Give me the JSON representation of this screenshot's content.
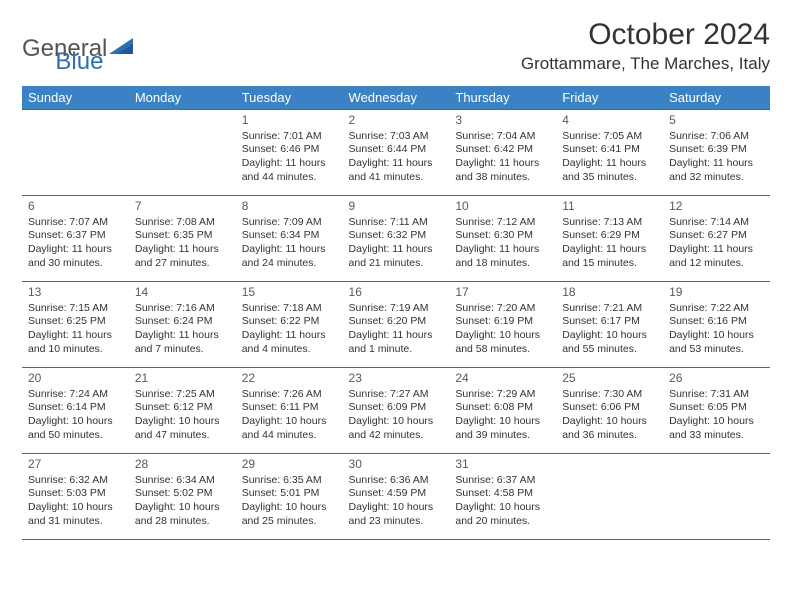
{
  "brand": {
    "part1": "General",
    "part2": "Blue"
  },
  "colors": {
    "header_bg": "#3b82c4",
    "header_text": "#ffffff",
    "border": "#3b6a9c",
    "brand_gray": "#6b6b6b",
    "brand_blue": "#2f6fb0"
  },
  "title": "October 2024",
  "location": "Grottammare, The Marches, Italy",
  "day_headers": [
    "Sunday",
    "Monday",
    "Tuesday",
    "Wednesday",
    "Thursday",
    "Friday",
    "Saturday"
  ],
  "weeks": [
    [
      {
        "day": "",
        "sunrise": "",
        "sunset": "",
        "daylight1": "",
        "daylight2": ""
      },
      {
        "day": "",
        "sunrise": "",
        "sunset": "",
        "daylight1": "",
        "daylight2": ""
      },
      {
        "day": "1",
        "sunrise": "Sunrise: 7:01 AM",
        "sunset": "Sunset: 6:46 PM",
        "daylight1": "Daylight: 11 hours",
        "daylight2": "and 44 minutes."
      },
      {
        "day": "2",
        "sunrise": "Sunrise: 7:03 AM",
        "sunset": "Sunset: 6:44 PM",
        "daylight1": "Daylight: 11 hours",
        "daylight2": "and 41 minutes."
      },
      {
        "day": "3",
        "sunrise": "Sunrise: 7:04 AM",
        "sunset": "Sunset: 6:42 PM",
        "daylight1": "Daylight: 11 hours",
        "daylight2": "and 38 minutes."
      },
      {
        "day": "4",
        "sunrise": "Sunrise: 7:05 AM",
        "sunset": "Sunset: 6:41 PM",
        "daylight1": "Daylight: 11 hours",
        "daylight2": "and 35 minutes."
      },
      {
        "day": "5",
        "sunrise": "Sunrise: 7:06 AM",
        "sunset": "Sunset: 6:39 PM",
        "daylight1": "Daylight: 11 hours",
        "daylight2": "and 32 minutes."
      }
    ],
    [
      {
        "day": "6",
        "sunrise": "Sunrise: 7:07 AM",
        "sunset": "Sunset: 6:37 PM",
        "daylight1": "Daylight: 11 hours",
        "daylight2": "and 30 minutes."
      },
      {
        "day": "7",
        "sunrise": "Sunrise: 7:08 AM",
        "sunset": "Sunset: 6:35 PM",
        "daylight1": "Daylight: 11 hours",
        "daylight2": "and 27 minutes."
      },
      {
        "day": "8",
        "sunrise": "Sunrise: 7:09 AM",
        "sunset": "Sunset: 6:34 PM",
        "daylight1": "Daylight: 11 hours",
        "daylight2": "and 24 minutes."
      },
      {
        "day": "9",
        "sunrise": "Sunrise: 7:11 AM",
        "sunset": "Sunset: 6:32 PM",
        "daylight1": "Daylight: 11 hours",
        "daylight2": "and 21 minutes."
      },
      {
        "day": "10",
        "sunrise": "Sunrise: 7:12 AM",
        "sunset": "Sunset: 6:30 PM",
        "daylight1": "Daylight: 11 hours",
        "daylight2": "and 18 minutes."
      },
      {
        "day": "11",
        "sunrise": "Sunrise: 7:13 AM",
        "sunset": "Sunset: 6:29 PM",
        "daylight1": "Daylight: 11 hours",
        "daylight2": "and 15 minutes."
      },
      {
        "day": "12",
        "sunrise": "Sunrise: 7:14 AM",
        "sunset": "Sunset: 6:27 PM",
        "daylight1": "Daylight: 11 hours",
        "daylight2": "and 12 minutes."
      }
    ],
    [
      {
        "day": "13",
        "sunrise": "Sunrise: 7:15 AM",
        "sunset": "Sunset: 6:25 PM",
        "daylight1": "Daylight: 11 hours",
        "daylight2": "and 10 minutes."
      },
      {
        "day": "14",
        "sunrise": "Sunrise: 7:16 AM",
        "sunset": "Sunset: 6:24 PM",
        "daylight1": "Daylight: 11 hours",
        "daylight2": "and 7 minutes."
      },
      {
        "day": "15",
        "sunrise": "Sunrise: 7:18 AM",
        "sunset": "Sunset: 6:22 PM",
        "daylight1": "Daylight: 11 hours",
        "daylight2": "and 4 minutes."
      },
      {
        "day": "16",
        "sunrise": "Sunrise: 7:19 AM",
        "sunset": "Sunset: 6:20 PM",
        "daylight1": "Daylight: 11 hours",
        "daylight2": "and 1 minute."
      },
      {
        "day": "17",
        "sunrise": "Sunrise: 7:20 AM",
        "sunset": "Sunset: 6:19 PM",
        "daylight1": "Daylight: 10 hours",
        "daylight2": "and 58 minutes."
      },
      {
        "day": "18",
        "sunrise": "Sunrise: 7:21 AM",
        "sunset": "Sunset: 6:17 PM",
        "daylight1": "Daylight: 10 hours",
        "daylight2": "and 55 minutes."
      },
      {
        "day": "19",
        "sunrise": "Sunrise: 7:22 AM",
        "sunset": "Sunset: 6:16 PM",
        "daylight1": "Daylight: 10 hours",
        "daylight2": "and 53 minutes."
      }
    ],
    [
      {
        "day": "20",
        "sunrise": "Sunrise: 7:24 AM",
        "sunset": "Sunset: 6:14 PM",
        "daylight1": "Daylight: 10 hours",
        "daylight2": "and 50 minutes."
      },
      {
        "day": "21",
        "sunrise": "Sunrise: 7:25 AM",
        "sunset": "Sunset: 6:12 PM",
        "daylight1": "Daylight: 10 hours",
        "daylight2": "and 47 minutes."
      },
      {
        "day": "22",
        "sunrise": "Sunrise: 7:26 AM",
        "sunset": "Sunset: 6:11 PM",
        "daylight1": "Daylight: 10 hours",
        "daylight2": "and 44 minutes."
      },
      {
        "day": "23",
        "sunrise": "Sunrise: 7:27 AM",
        "sunset": "Sunset: 6:09 PM",
        "daylight1": "Daylight: 10 hours",
        "daylight2": "and 42 minutes."
      },
      {
        "day": "24",
        "sunrise": "Sunrise: 7:29 AM",
        "sunset": "Sunset: 6:08 PM",
        "daylight1": "Daylight: 10 hours",
        "daylight2": "and 39 minutes."
      },
      {
        "day": "25",
        "sunrise": "Sunrise: 7:30 AM",
        "sunset": "Sunset: 6:06 PM",
        "daylight1": "Daylight: 10 hours",
        "daylight2": "and 36 minutes."
      },
      {
        "day": "26",
        "sunrise": "Sunrise: 7:31 AM",
        "sunset": "Sunset: 6:05 PM",
        "daylight1": "Daylight: 10 hours",
        "daylight2": "and 33 minutes."
      }
    ],
    [
      {
        "day": "27",
        "sunrise": "Sunrise: 6:32 AM",
        "sunset": "Sunset: 5:03 PM",
        "daylight1": "Daylight: 10 hours",
        "daylight2": "and 31 minutes."
      },
      {
        "day": "28",
        "sunrise": "Sunrise: 6:34 AM",
        "sunset": "Sunset: 5:02 PM",
        "daylight1": "Daylight: 10 hours",
        "daylight2": "and 28 minutes."
      },
      {
        "day": "29",
        "sunrise": "Sunrise: 6:35 AM",
        "sunset": "Sunset: 5:01 PM",
        "daylight1": "Daylight: 10 hours",
        "daylight2": "and 25 minutes."
      },
      {
        "day": "30",
        "sunrise": "Sunrise: 6:36 AM",
        "sunset": "Sunset: 4:59 PM",
        "daylight1": "Daylight: 10 hours",
        "daylight2": "and 23 minutes."
      },
      {
        "day": "31",
        "sunrise": "Sunrise: 6:37 AM",
        "sunset": "Sunset: 4:58 PM",
        "daylight1": "Daylight: 10 hours",
        "daylight2": "and 20 minutes."
      },
      {
        "day": "",
        "sunrise": "",
        "sunset": "",
        "daylight1": "",
        "daylight2": ""
      },
      {
        "day": "",
        "sunrise": "",
        "sunset": "",
        "daylight1": "",
        "daylight2": ""
      }
    ]
  ]
}
